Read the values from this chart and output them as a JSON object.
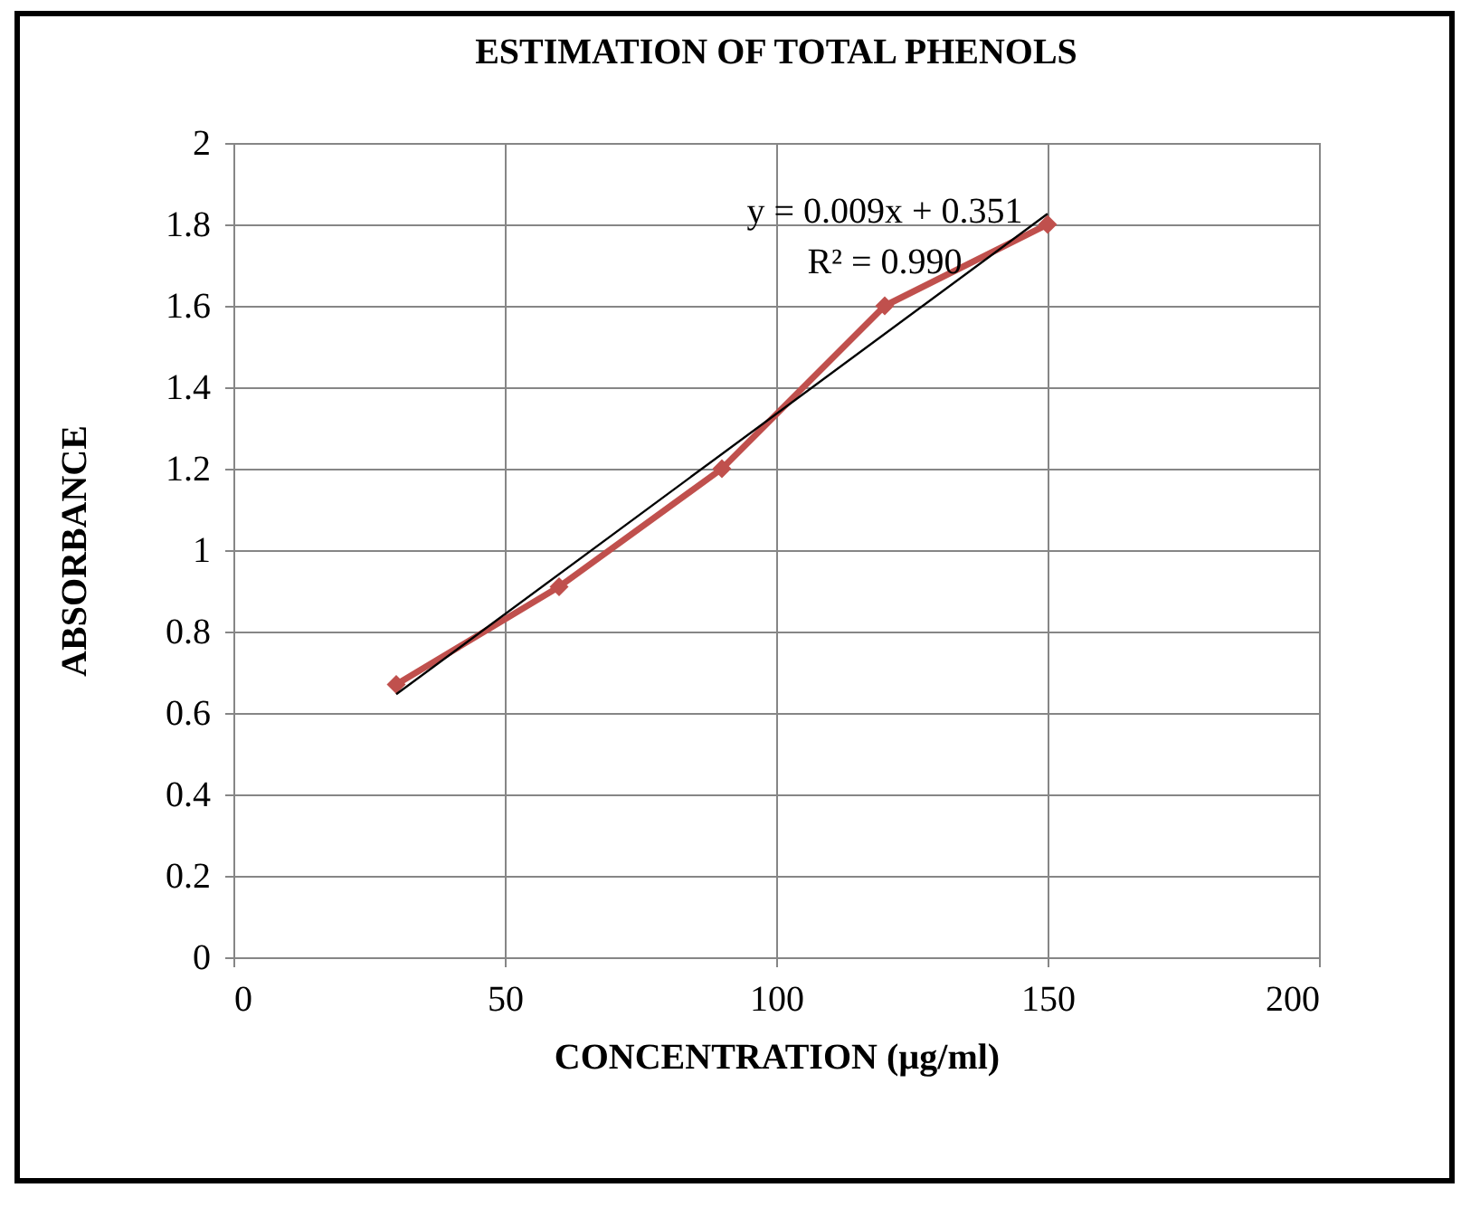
{
  "chart_data": {
    "type": "line",
    "title": "ESTIMATION OF TOTAL PHENOLS",
    "xlabel": "CONCENTRATION (µg/ml)",
    "ylabel": "ABSORBANCE",
    "x": [
      30,
      60,
      90,
      120,
      150
    ],
    "series": [
      {
        "color": "#c0504d",
        "values": [
          0.67,
          0.91,
          1.2,
          1.6,
          1.8
        ]
      },
      {
        "type": "line",
        "x": [
          30,
          150
        ],
        "values": [
          0.646,
          1.826
        ],
        "color": "#000000",
        "marker": "none"
      }
    ],
    "annotations": [
      "y = 0.009x + 0.351",
      "R² = 0.990"
    ],
    "xlim": [
      0,
      200
    ],
    "xticks": [
      0,
      50,
      100,
      150,
      200
    ],
    "ylim": [
      0,
      2
    ],
    "yticks": [
      0,
      0.2,
      0.4,
      0.6,
      0.8,
      1,
      1.2,
      1.4,
      1.6,
      1.8,
      2
    ],
    "grid": true,
    "marker": "diamond"
  }
}
